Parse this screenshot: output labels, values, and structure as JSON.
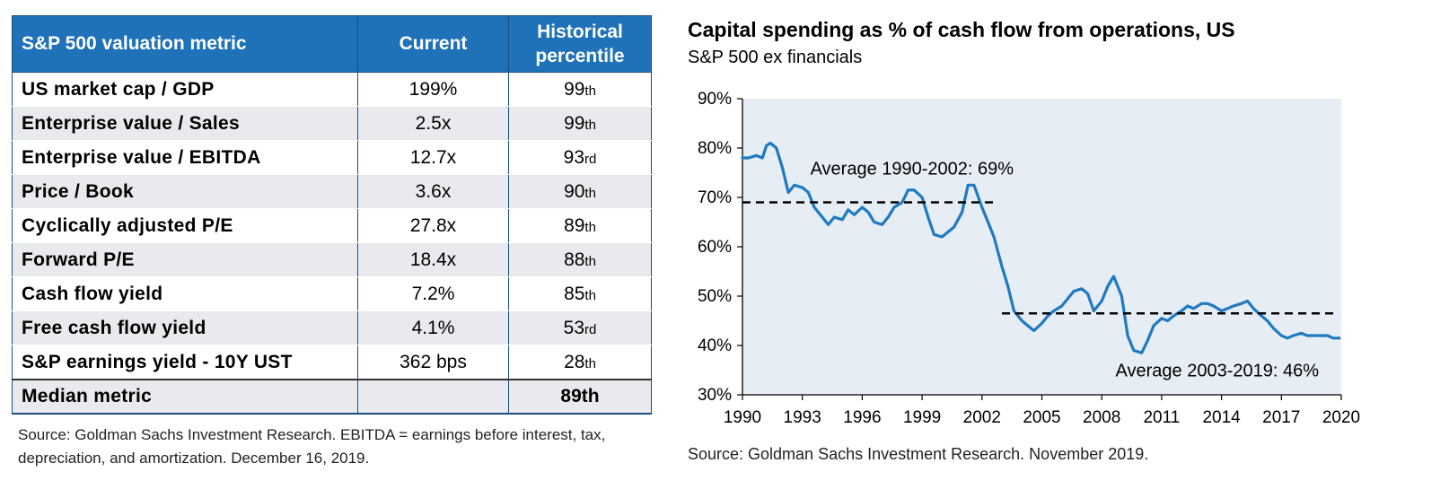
{
  "table": {
    "headers": {
      "metric": "S&P 500 valuation metric",
      "current": "Current",
      "percentile_line1": "Historical",
      "percentile_line2": "percentile"
    },
    "rows": [
      {
        "metric": "US market cap / GDP",
        "current": "199%",
        "percentile": "99",
        "suffix": "th"
      },
      {
        "metric": "Enterprise value / Sales",
        "current": "2.5x",
        "percentile": "99",
        "suffix": "th"
      },
      {
        "metric": "Enterprise value / EBITDA",
        "current": "12.7x",
        "percentile": "93",
        "suffix": "rd"
      },
      {
        "metric": "Price / Book",
        "current": "3.6x",
        "percentile": "90",
        "suffix": "th"
      },
      {
        "metric": "Cyclically adjusted P/E",
        "current": "27.8x",
        "percentile": "89",
        "suffix": "th"
      },
      {
        "metric": "Forward P/E",
        "current": "18.4x",
        "percentile": "88",
        "suffix": "th"
      },
      {
        "metric": "Cash flow yield",
        "current": "7.2%",
        "percentile": "85",
        "suffix": "th"
      },
      {
        "metric": "Free cash flow yield",
        "current": "4.1%",
        "percentile": "53",
        "suffix": "rd"
      },
      {
        "metric": "S&P earnings yield - 10Y UST",
        "current": "362 bps",
        "percentile": "28",
        "suffix": "th"
      }
    ],
    "median": {
      "metric": "Median metric",
      "current": "",
      "percentile": "89th"
    },
    "source": "Source: Goldman Sachs Investment Research. EBITDA = earnings before interest, tax, depreciation, and amortization. December 16, 2019."
  },
  "chart_data": {
    "type": "line",
    "title": "Capital spending as % of cash flow from operations, US",
    "subtitle": "S&P 500 ex financials",
    "xlabel": "",
    "ylabel": "",
    "xlim": [
      1990,
      2020
    ],
    "ylim": [
      30,
      90
    ],
    "x_ticks": [
      "1990",
      "1993",
      "1996",
      "1999",
      "2002",
      "2005",
      "2008",
      "2011",
      "2014",
      "2017",
      "2020"
    ],
    "y_ticks": [
      "30%",
      "40%",
      "50%",
      "60%",
      "70%",
      "80%",
      "90%"
    ],
    "grid": false,
    "series": [
      {
        "color": "#1f7ac0",
        "x": [
          1990.0,
          1990.3,
          1990.7,
          1991.0,
          1991.2,
          1991.4,
          1991.7,
          1992.0,
          1992.3,
          1992.6,
          1993.0,
          1993.3,
          1993.6,
          1994.0,
          1994.3,
          1994.6,
          1995.0,
          1995.3,
          1995.6,
          1996.0,
          1996.3,
          1996.6,
          1997.0,
          1997.3,
          1997.6,
          1998.0,
          1998.3,
          1998.6,
          1999.0,
          1999.3,
          1999.6,
          2000.0,
          2000.3,
          2000.6,
          2001.0,
          2001.3,
          2001.6,
          2002.0,
          2002.3,
          2002.6,
          2003.0,
          2003.3,
          2003.6,
          2004.0,
          2004.3,
          2004.6,
          2005.0,
          2005.3,
          2005.6,
          2006.0,
          2006.3,
          2006.6,
          2007.0,
          2007.3,
          2007.6,
          2008.0,
          2008.3,
          2008.6,
          2009.0,
          2009.3,
          2009.6,
          2010.0,
          2010.3,
          2010.6,
          2011.0,
          2011.3,
          2011.6,
          2012.0,
          2012.3,
          2012.6,
          2013.0,
          2013.3,
          2013.6,
          2014.0,
          2014.3,
          2014.6,
          2015.0,
          2015.3,
          2015.6,
          2016.0,
          2016.3,
          2016.6,
          2017.0,
          2017.3,
          2017.6,
          2018.0,
          2018.3,
          2018.6,
          2019.0,
          2019.3,
          2019.6,
          2019.9
        ],
        "y": [
          78,
          78,
          78.5,
          78,
          80.5,
          81,
          80,
          76,
          71,
          72.5,
          72,
          71,
          68,
          66,
          64.5,
          66,
          65.5,
          67.5,
          66.5,
          68,
          67,
          65,
          64.5,
          66,
          68,
          69,
          71.5,
          71.5,
          70,
          66,
          62.5,
          62,
          63,
          64,
          67,
          72.5,
          72.5,
          68,
          65,
          62,
          56,
          52,
          47,
          45,
          44,
          43,
          44.5,
          46,
          47,
          48,
          49.5,
          51,
          51.5,
          50.5,
          47,
          49,
          52,
          54,
          50,
          42,
          39,
          38.5,
          41,
          44,
          45.5,
          45,
          46,
          47,
          48,
          47.5,
          48.5,
          48.5,
          48,
          47,
          47.5,
          48,
          48.5,
          49,
          47.5,
          46,
          45,
          43.5,
          42,
          41.5,
          42,
          42.5,
          42,
          42,
          42,
          42,
          41.5,
          41.5
        ]
      }
    ],
    "reference_lines": [
      {
        "label": "Average 1990-2002: 69%",
        "y": 69,
        "x_start": 1990,
        "x_end": 2002.7,
        "color": "#000000"
      },
      {
        "label": "Average 2003-2019: 46%",
        "y": 46.5,
        "x_start": 2003,
        "x_end": 2019.7,
        "color": "#000000"
      }
    ],
    "plot_background": "#e6edf5",
    "source": "Source: Goldman Sachs Investment Research. November 2019."
  }
}
